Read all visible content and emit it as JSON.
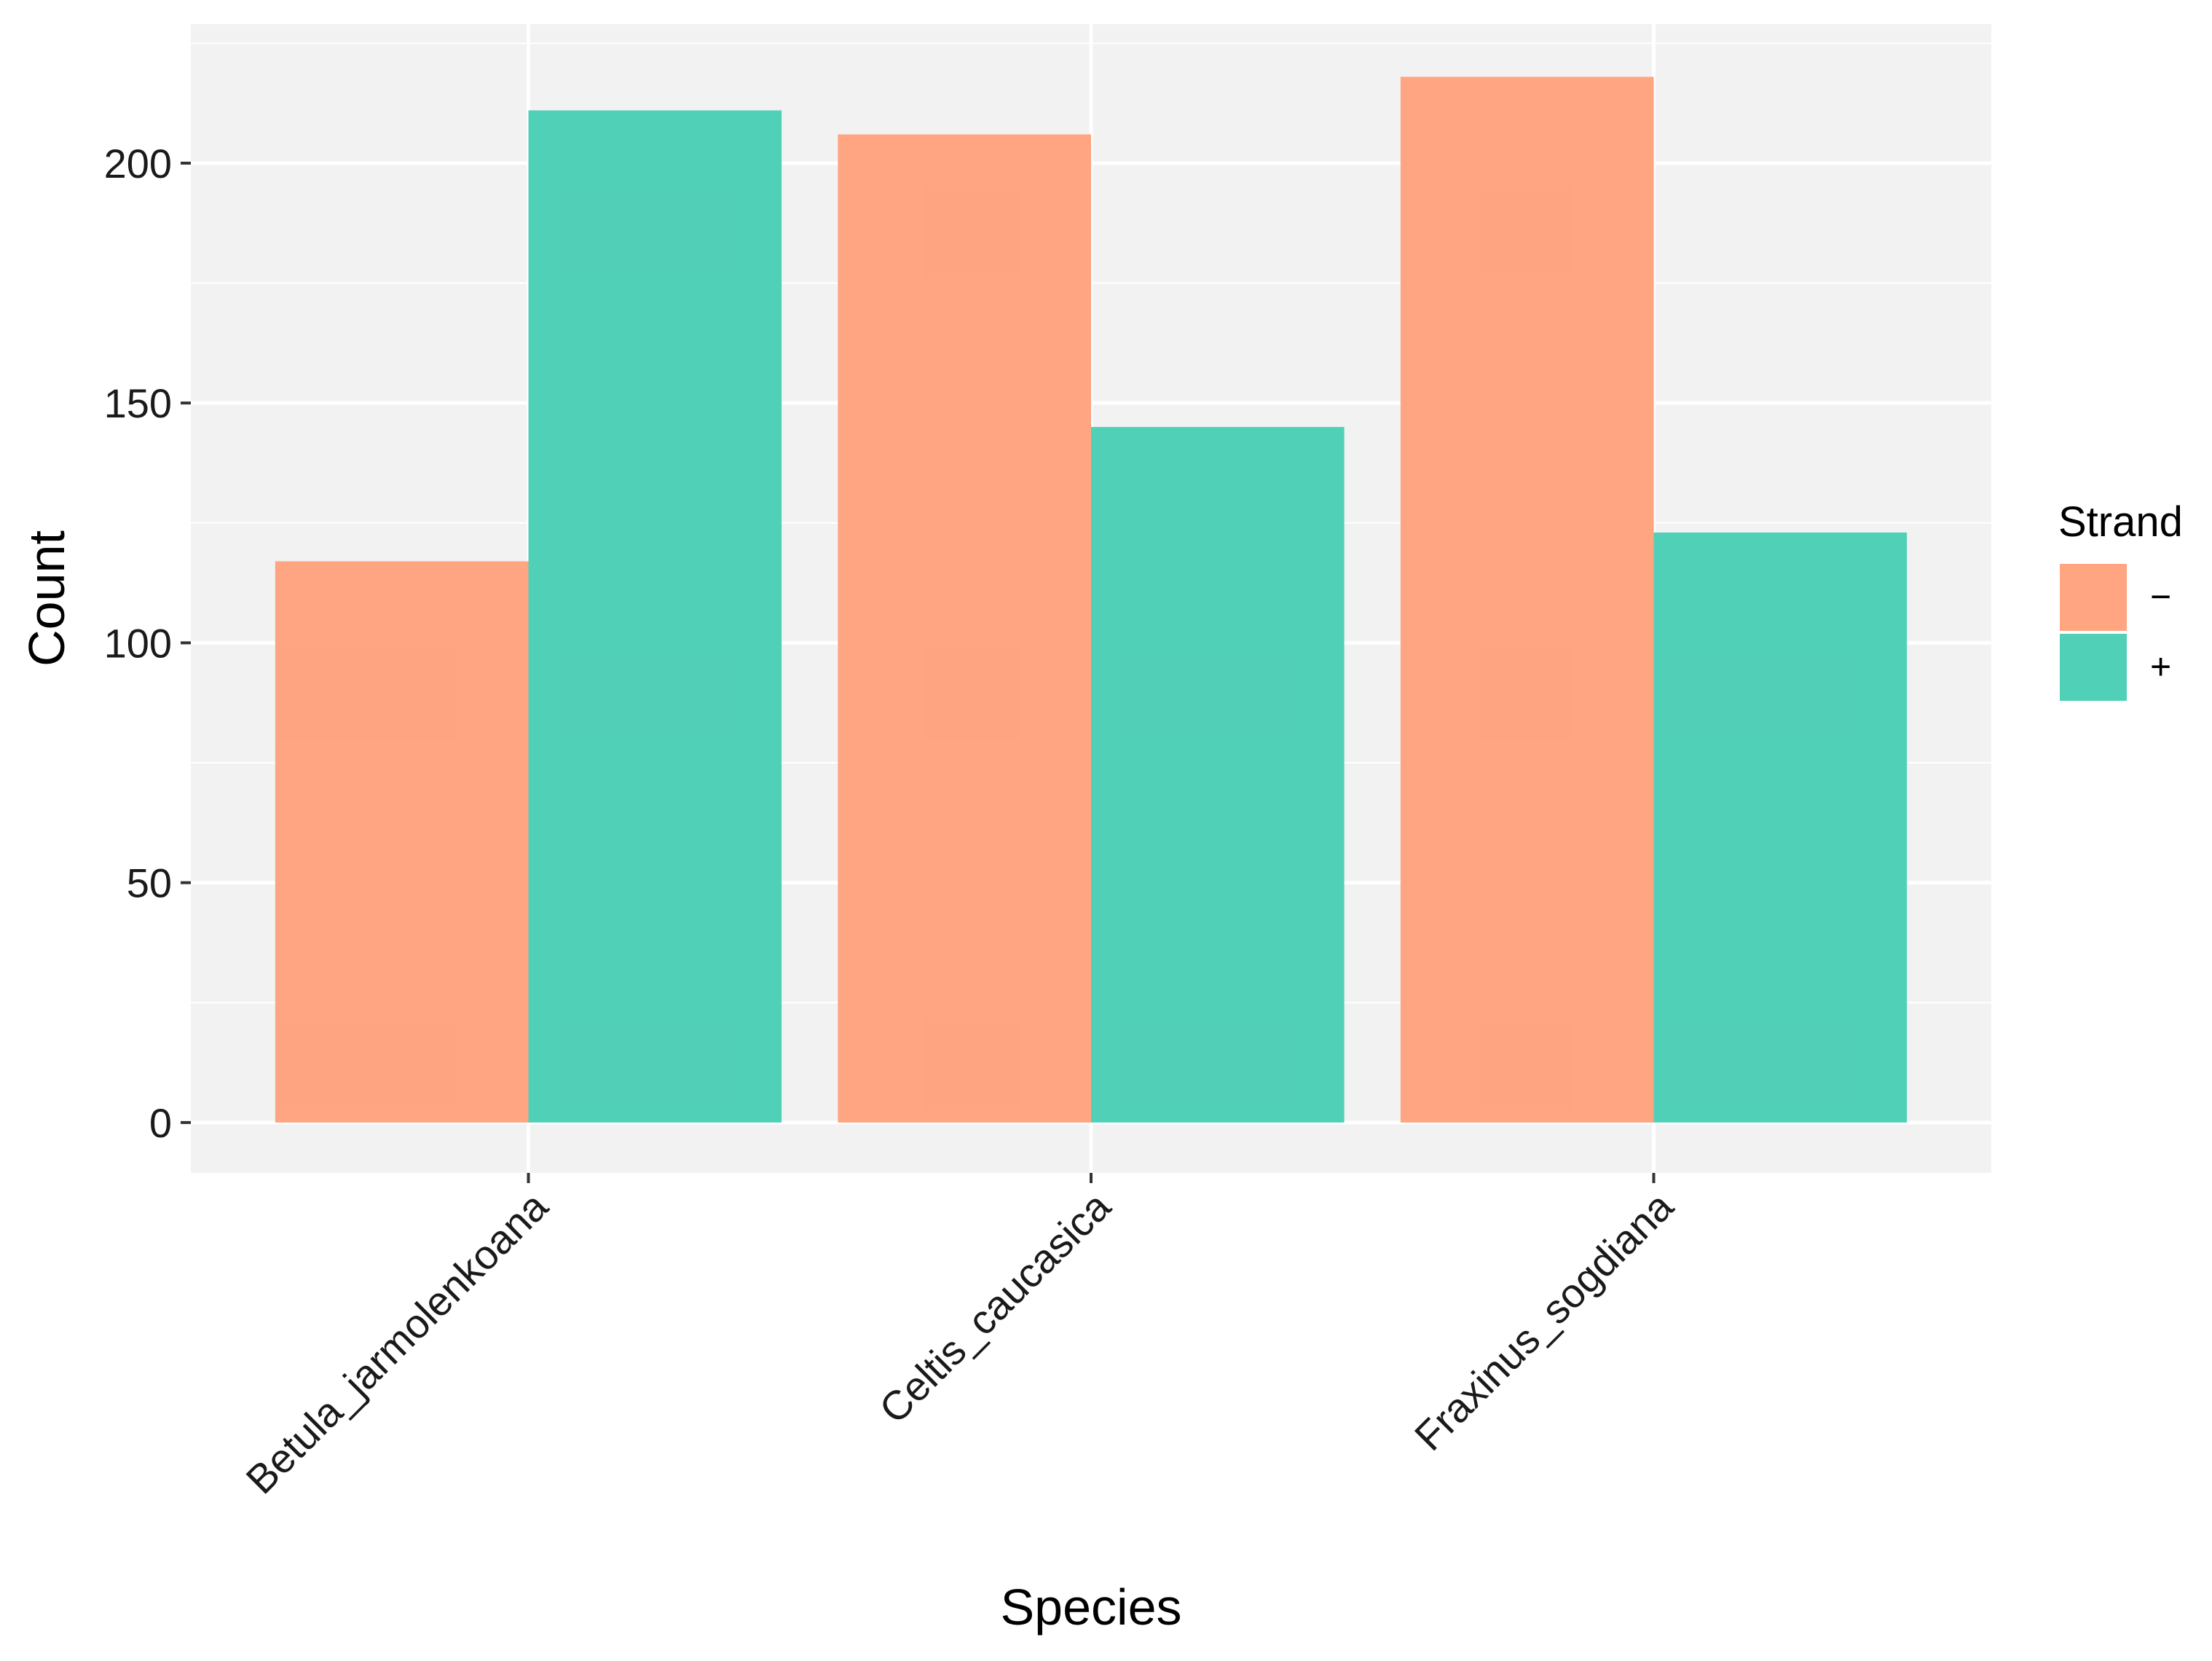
{
  "chart_data": {
    "type": "bar",
    "title": "",
    "xlabel": "Species",
    "ylabel": "Count",
    "categories": [
      "Betula_jarmolenkoana",
      "Celtis_caucasica",
      "Fraxinus_sogdiana"
    ],
    "series": [
      {
        "name": "−",
        "color": "#FFA07A",
        "values": [
          117,
          206,
          218
        ]
      },
      {
        "name": "+",
        "color": "#48CDB4",
        "values": [
          211,
          145,
          123
        ]
      }
    ],
    "ylim": [
      -10.5,
      229
    ],
    "yticks": [
      0,
      50,
      100,
      150,
      200
    ],
    "grid": true,
    "panel_background": "#F2F2F2",
    "legend": {
      "title": "Strand",
      "position": "right"
    }
  }
}
